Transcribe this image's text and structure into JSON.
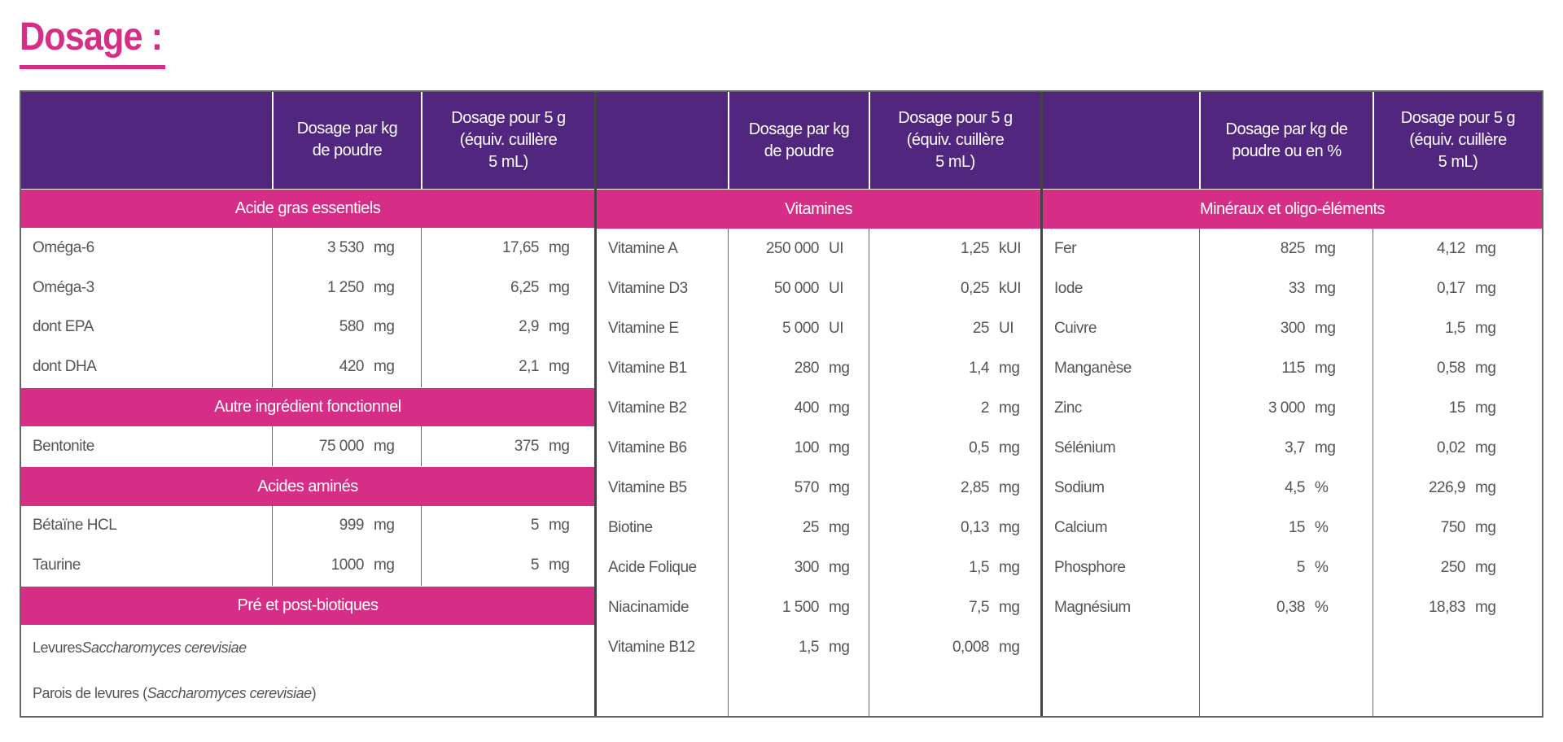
{
  "title": "Dosage :",
  "colors": {
    "purple": "#51267f",
    "pink": "#d62e87"
  },
  "panels": [
    {
      "headers": [
        "",
        "Dosage par kg\nde poudre",
        "Dosage pour 5 g\n(équiv. cuillère\n5 mL)"
      ],
      "offsets": [
        112,
        144
      ],
      "sections": [
        {
          "title": "Acide gras essentiels",
          "rows": [
            {
              "name": "Oméga-6",
              "kg": {
                "v": "3 530",
                "u": "mg"
              },
              "dose": {
                "v": "17,65",
                "u": "mg"
              }
            },
            {
              "name": "Oméga-3",
              "kg": {
                "v": "1 250",
                "u": "mg"
              },
              "dose": {
                "v": "6,25",
                "u": "mg"
              }
            },
            {
              "name": "dont EPA",
              "kg": {
                "v": "580",
                "u": "mg"
              },
              "dose": {
                "v": "2,9",
                "u": "mg"
              }
            },
            {
              "name": "dont DHA",
              "kg": {
                "v": "420",
                "u": "mg"
              },
              "dose": {
                "v": "2,1",
                "u": "mg"
              }
            }
          ]
        },
        {
          "title": "Autre ingrédient fonctionnel",
          "rows": [
            {
              "name": "Bentonite",
              "kg": {
                "v": "75 000",
                "u": "mg"
              },
              "dose": {
                "v": "375",
                "u": "mg"
              }
            }
          ]
        },
        {
          "title": "Acides aminés",
          "rows": [
            {
              "name": "Bétaïne HCL",
              "kg": {
                "v": "999",
                "u": "mg"
              },
              "dose": {
                "v": "5",
                "u": "mg"
              }
            },
            {
              "name": "Taurine",
              "kg": {
                "v": "1000",
                "u": "mg"
              },
              "dose": {
                "v": "5",
                "u": "mg"
              }
            }
          ]
        },
        {
          "title": "Pré et post-biotiques",
          "rows": [
            {
              "name": "Levures ",
              "italic": "Saccharomyces cerevisiae",
              "suffix": ""
            },
            {
              "name": "Parois de levures (",
              "italic": "Saccharomyces cerevisiae",
              "suffix": ")"
            }
          ]
        }
      ]
    },
    {
      "headers": [
        "",
        "Dosage par kg\nde poudre",
        "Dosage pour 5 g\n(équiv. cuillère\n5 mL)"
      ],
      "offsets": [
        111,
        147
      ],
      "sections": [
        {
          "title": "Vitamines",
          "rows": [
            {
              "name": "Vitamine A",
              "kg": {
                "v": "250 000",
                "u": "UI"
              },
              "dose": {
                "v": "1,25",
                "u": "kUI"
              }
            },
            {
              "name": "Vitamine D3",
              "kg": {
                "v": "50 000",
                "u": "UI"
              },
              "dose": {
                "v": "0,25",
                "u": "kUI"
              }
            },
            {
              "name": "Vitamine E",
              "kg": {
                "v": "5 000",
                "u": "UI"
              },
              "dose": {
                "v": "25",
                "u": "UI"
              }
            },
            {
              "name": "Vitamine B1",
              "kg": {
                "v": "280",
                "u": "mg"
              },
              "dose": {
                "v": "1,4",
                "u": "mg"
              }
            },
            {
              "name": "Vitamine B2",
              "kg": {
                "v": "400",
                "u": "mg"
              },
              "dose": {
                "v": "2",
                "u": "mg"
              }
            },
            {
              "name": "Vitamine B6",
              "kg": {
                "v": "100",
                "u": "mg"
              },
              "dose": {
                "v": "0,5",
                "u": "mg"
              }
            },
            {
              "name": "Vitamine B5",
              "kg": {
                "v": "570",
                "u": "mg"
              },
              "dose": {
                "v": "2,85",
                "u": "mg"
              }
            },
            {
              "name": "Biotine",
              "kg": {
                "v": "25",
                "u": "mg"
              },
              "dose": {
                "v": "0,13",
                "u": "mg"
              }
            },
            {
              "name": "Acide Folique",
              "kg": {
                "v": "300",
                "u": "mg"
              },
              "dose": {
                "v": "1,5",
                "u": "mg"
              }
            },
            {
              "name": "Niacinamide",
              "kg": {
                "v": "1 500",
                "u": "mg"
              },
              "dose": {
                "v": "7,5",
                "u": "mg"
              }
            },
            {
              "name": "Vitamine B12",
              "kg": {
                "v": "1,5",
                "u": "mg"
              },
              "dose": {
                "v": "0,008",
                "u": "mg"
              }
            }
          ]
        }
      ]
    },
    {
      "headers": [
        "",
        "Dosage par kg de\npoudre ou en %",
        "Dosage pour 5 g\n(équiv. cuillère\n5 mL)"
      ],
      "offsets": [
        129,
        113
      ],
      "sections": [
        {
          "title": "Minéraux et oligo-éléments",
          "rows": [
            {
              "name": "Fer",
              "kg": {
                "v": "825",
                "u": "mg"
              },
              "dose": {
                "v": "4,12",
                "u": "mg"
              }
            },
            {
              "name": "Iode",
              "kg": {
                "v": "33",
                "u": "mg"
              },
              "dose": {
                "v": "0,17",
                "u": "mg"
              }
            },
            {
              "name": "Cuivre",
              "kg": {
                "v": "300",
                "u": "mg"
              },
              "dose": {
                "v": "1,5",
                "u": "mg"
              }
            },
            {
              "name": "Manganèse",
              "kg": {
                "v": "115",
                "u": "mg"
              },
              "dose": {
                "v": "0,58",
                "u": "mg"
              }
            },
            {
              "name": "Zinc",
              "kg": {
                "v": "3 000",
                "u": "mg"
              },
              "dose": {
                "v": "15",
                "u": "mg"
              }
            },
            {
              "name": "Sélénium",
              "kg": {
                "v": "3,7",
                "u": "mg"
              },
              "dose": {
                "v": "0,02",
                "u": "mg"
              }
            },
            {
              "name": "Sodium",
              "kg": {
                "v": "4,5",
                "u": "%"
              },
              "dose": {
                "v": "226,9",
                "u": "mg"
              }
            },
            {
              "name": "Calcium",
              "kg": {
                "v": "15",
                "u": "%"
              },
              "dose": {
                "v": "750",
                "u": "mg"
              }
            },
            {
              "name": "Phosphore",
              "kg": {
                "v": "5",
                "u": "%"
              },
              "dose": {
                "v": "250",
                "u": "mg"
              }
            },
            {
              "name": "Magnésium",
              "kg": {
                "v": "0,38",
                "u": "%"
              },
              "dose": {
                "v": "18,83",
                "u": "mg"
              }
            }
          ]
        }
      ]
    }
  ]
}
